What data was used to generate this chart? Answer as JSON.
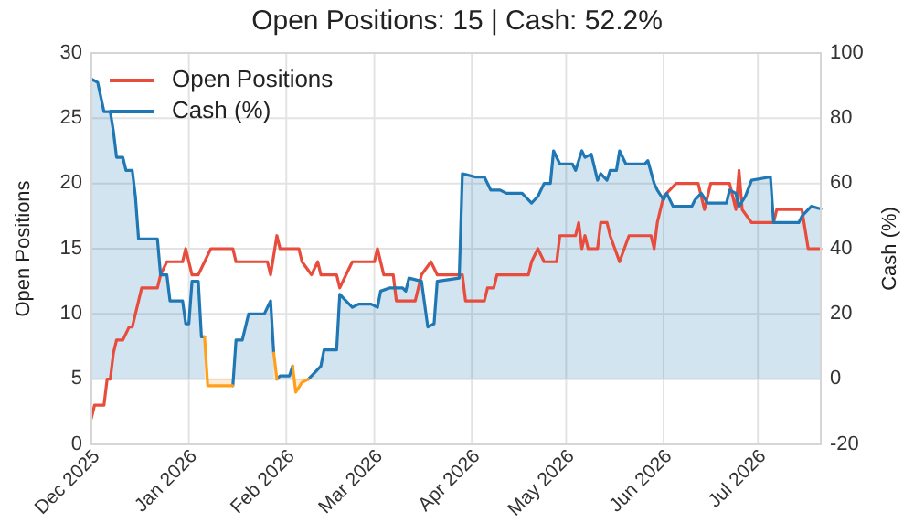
{
  "chart_data": {
    "type": "line",
    "title": "Open Positions: 15 | Cash: 52.2%",
    "ylabel": "Open Positions",
    "y2label": "Cash (%)",
    "xlim": [
      "2025-12-01",
      "2026-07-21"
    ],
    "xticks": [
      {
        "value": "2025-12-01",
        "label": "Dec 2025"
      },
      {
        "value": "2026-01-01",
        "label": "Jan 2026"
      },
      {
        "value": "2026-02-01",
        "label": "Feb 2026"
      },
      {
        "value": "2026-03-01",
        "label": "Mar 2026"
      },
      {
        "value": "2026-04-01",
        "label": "Apr 2026"
      },
      {
        "value": "2026-05-01",
        "label": "May 2026"
      },
      {
        "value": "2026-06-01",
        "label": "Jun 2026"
      },
      {
        "value": "2026-07-01",
        "label": "Jul 2026"
      }
    ],
    "ylim": [
      0,
      30
    ],
    "yticks": [
      0,
      5,
      10,
      15,
      20,
      25,
      30
    ],
    "y2lim": [
      -20,
      100
    ],
    "y2ticks": [
      -20,
      0,
      20,
      40,
      60,
      80,
      100
    ],
    "grid": true,
    "legend": "top left",
    "series": [
      {
        "name": "Open Positions",
        "color": "#e74c3c",
        "x": [
          "2025-12-01",
          "2025-12-02",
          "2025-12-05",
          "2025-12-06",
          "2025-12-07",
          "2025-12-08",
          "2025-12-09",
          "2025-12-11",
          "2025-12-13",
          "2025-12-14",
          "2025-12-16",
          "2025-12-17",
          "2025-12-22",
          "2025-12-23",
          "2025-12-25",
          "2025-12-30",
          "2025-12-31",
          "2026-01-02",
          "2026-01-04",
          "2026-01-06",
          "2026-01-08",
          "2026-01-15",
          "2026-01-16",
          "2026-01-26",
          "2026-01-27",
          "2026-01-29",
          "2026-01-30",
          "2026-02-05",
          "2026-02-06",
          "2026-02-09",
          "2026-02-11",
          "2026-02-12",
          "2026-02-17",
          "2026-02-18",
          "2026-02-20",
          "2026-02-22",
          "2026-03-01",
          "2026-03-02",
          "2026-03-04",
          "2026-03-07",
          "2026-03-08",
          "2026-03-14",
          "2026-03-16",
          "2026-03-19",
          "2026-03-21",
          "2026-03-29",
          "2026-03-30",
          "2026-04-05",
          "2026-04-06",
          "2026-04-08",
          "2026-04-09",
          "2026-04-19",
          "2026-04-20",
          "2026-04-22",
          "2026-04-24",
          "2026-04-28",
          "2026-04-29",
          "2026-05-04",
          "2026-05-05",
          "2026-05-06",
          "2026-05-07",
          "2026-05-08",
          "2026-05-11",
          "2026-05-12",
          "2026-05-14",
          "2026-05-15",
          "2026-05-18",
          "2026-05-21",
          "2026-05-28",
          "2026-05-29",
          "2026-05-30",
          "2026-05-31",
          "2026-06-01",
          "2026-06-05",
          "2026-06-12",
          "2026-06-13",
          "2026-06-14",
          "2026-06-16",
          "2026-06-22",
          "2026-06-23",
          "2026-06-24",
          "2026-06-25",
          "2026-06-26",
          "2026-06-29",
          "2026-07-06",
          "2026-07-07",
          "2026-07-15",
          "2026-07-17",
          "2026-07-21"
        ],
        "values": [
          2,
          3,
          3,
          5,
          5,
          7,
          8,
          8,
          9,
          9,
          11,
          12,
          12,
          13,
          14,
          14,
          15,
          13,
          13,
          14,
          15,
          15,
          14,
          14,
          13,
          16,
          15,
          15,
          14,
          13,
          14,
          13,
          13,
          12,
          13,
          14,
          14,
          15,
          13,
          13,
          11,
          11,
          13,
          14,
          13,
          13,
          11,
          11,
          12,
          12,
          13,
          13,
          14,
          15,
          14,
          14,
          16,
          16,
          17,
          15,
          16,
          15,
          15,
          17,
          17,
          16,
          14,
          16,
          16,
          15,
          17,
          18,
          19,
          20,
          20,
          19,
          18,
          20,
          20,
          19,
          18,
          21,
          18,
          17,
          17,
          18,
          18,
          15,
          15
        ]
      },
      {
        "name": "Cash (%)",
        "type": "area",
        "axis": "y2",
        "color": "#1f77b4",
        "x": [
          "2025-12-01",
          "2025-12-03",
          "2025-12-05",
          "2025-12-07",
          "2025-12-08",
          "2025-12-09",
          "2025-12-11",
          "2025-12-12",
          "2025-12-14",
          "2025-12-15",
          "2025-12-16",
          "2025-12-22",
          "2025-12-23",
          "2025-12-25",
          "2025-12-26",
          "2025-12-30",
          "2025-12-31",
          "2026-01-01",
          "2026-01-02",
          "2026-01-04",
          "2026-01-05",
          "2026-01-06",
          "2026-01-10",
          "2026-01-15",
          "2026-01-16",
          "2026-01-18",
          "2026-01-20",
          "2026-01-25",
          "2026-01-27",
          "2026-01-28",
          "2026-01-28T12:00",
          "2026-01-29",
          "2026-01-30",
          "2026-02-02",
          "2026-02-03",
          "2026-02-05",
          "2026-02-08",
          "2026-02-10",
          "2026-02-12",
          "2026-02-13",
          "2026-02-17",
          "2026-02-18",
          "2026-02-20",
          "2026-02-22",
          "2026-02-24",
          "2026-02-28",
          "2026-03-02",
          "2026-03-03",
          "2026-03-06",
          "2026-03-10",
          "2026-03-11",
          "2026-03-12",
          "2026-03-16",
          "2026-03-18",
          "2026-03-20",
          "2026-03-21",
          "2026-03-28",
          "2026-03-29",
          "2026-04-02",
          "2026-04-05",
          "2026-04-07",
          "2026-04-10",
          "2026-04-12",
          "2026-04-17",
          "2026-04-20",
          "2026-04-21",
          "2026-04-22",
          "2026-04-24",
          "2026-04-26",
          "2026-04-27",
          "2026-04-29",
          "2026-05-03",
          "2026-05-04",
          "2026-05-06",
          "2026-05-07",
          "2026-05-09",
          "2026-05-11",
          "2026-05-12",
          "2026-05-14",
          "2026-05-15",
          "2026-05-17",
          "2026-05-18",
          "2026-05-20",
          "2026-05-26",
          "2026-05-27",
          "2026-05-29",
          "2026-05-30",
          "2026-06-01",
          "2026-06-02",
          "2026-06-04",
          "2026-06-10",
          "2026-06-11",
          "2026-06-13",
          "2026-06-15",
          "2026-06-21",
          "2026-06-22",
          "2026-06-24",
          "2026-06-25",
          "2026-06-27",
          "2026-06-29",
          "2026-07-05",
          "2026-07-06",
          "2026-07-14",
          "2026-07-15",
          "2026-07-18",
          "2026-07-21"
        ],
        "values": [
          92,
          91,
          82,
          82,
          76,
          68,
          68,
          64,
          64,
          56,
          43,
          43,
          32,
          32,
          24,
          24,
          17,
          17,
          30,
          30,
          13,
          13,
          null,
          -2,
          12,
          12,
          20,
          20,
          24,
          8,
          null,
          0,
          1,
          1,
          4,
          null,
          0,
          2,
          4,
          9,
          9,
          26,
          24,
          22,
          23,
          23,
          22,
          27,
          28,
          28,
          27,
          31,
          30,
          16,
          17,
          30,
          31,
          63,
          62,
          62,
          58,
          58,
          57,
          57,
          54,
          55,
          56,
          60,
          60,
          70,
          66,
          66,
          64,
          70,
          68,
          69,
          61,
          63,
          61,
          64,
          64,
          70,
          66,
          66,
          67,
          60,
          58,
          55,
          57,
          53,
          53,
          55,
          57,
          54,
          54,
          58,
          57,
          53,
          56,
          61,
          62,
          48,
          48,
          50,
          53,
          52.2
        ]
      },
      {
        "type": "area",
        "axis": "y2",
        "color": "#ff9f1c",
        "x": [
          "2026-01-06",
          "2026-01-07",
          "2026-01-15",
          "2026-01-20",
          "2026-01-28",
          "2026-01-29",
          "2026-02-01",
          "2026-02-03",
          "2026-02-04",
          "2026-02-06",
          "2026-02-08"
        ],
        "values": [
          13,
          -2,
          -2,
          null,
          8,
          0,
          null,
          4,
          -4,
          -1,
          0
        ]
      }
    ]
  }
}
